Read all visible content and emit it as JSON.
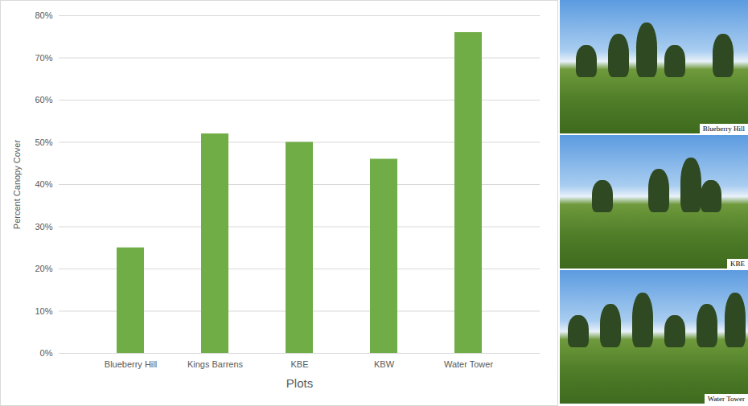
{
  "chart_data": {
    "type": "bar",
    "categories": [
      "Blueberry Hill",
      "Kings Barrens",
      "KBE",
      "KBW",
      "Water Tower"
    ],
    "values": [
      25,
      52,
      50,
      46,
      76
    ],
    "color": "#70ad47",
    "x_label": "Plots",
    "y_label": "Percent Canopy Cover",
    "ylim": [
      0,
      80
    ],
    "yticks": [
      {
        "value": 0,
        "label": "0%"
      },
      {
        "value": 10,
        "label": "10%"
      },
      {
        "value": 20,
        "label": "20%"
      },
      {
        "value": 30,
        "label": "30%"
      },
      {
        "value": 40,
        "label": "40%"
      },
      {
        "value": 50,
        "label": "50%"
      },
      {
        "value": 60,
        "label": "60%"
      },
      {
        "value": 70,
        "label": "70%"
      },
      {
        "value": 80,
        "label": "80%"
      }
    ],
    "grid": true
  },
  "photos": [
    {
      "caption": "Blueberry Hill"
    },
    {
      "caption": "KBE"
    },
    {
      "caption": "Water Tower"
    }
  ]
}
